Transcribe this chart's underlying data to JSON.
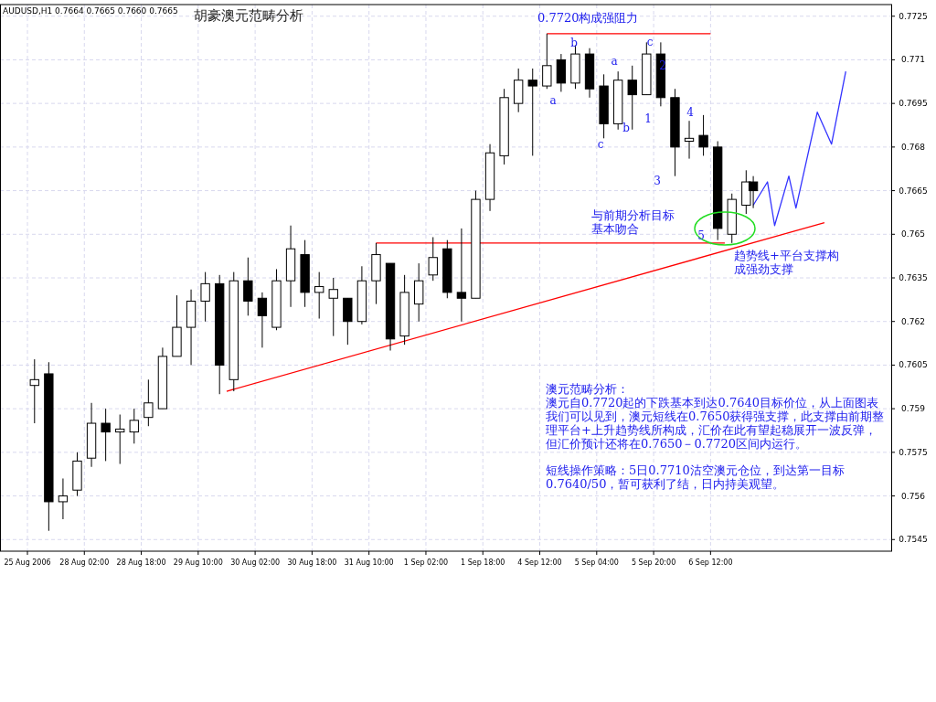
{
  "chart_data": {
    "type": "candlestick",
    "title": "AUDUSD,H1  0.7664 0.7665 0.7660 0.7665",
    "subtitle": "胡豪澳元范畴分析",
    "categories": [
      "25 Aug 2006",
      null,
      null,
      null,
      null,
      null,
      null,
      null,
      "28 Aug 02:00",
      null,
      null,
      null,
      null,
      null,
      null,
      null,
      "28 Aug 18:00",
      null,
      null,
      null,
      null,
      null,
      null,
      null,
      "29 Aug 10:00",
      null,
      null,
      null,
      null,
      null,
      null,
      null,
      "30 Aug 02:00",
      null,
      null,
      null,
      null,
      null,
      null,
      null,
      "30 Aug 18:00",
      null,
      null,
      null,
      null,
      null,
      null,
      null,
      "31 Aug 10:00",
      null,
      null,
      null,
      null,
      null,
      null,
      null,
      "1 Sep 02:00",
      null,
      null,
      null,
      null,
      null,
      null,
      null,
      "1 Sep 18:00",
      null,
      null,
      null,
      null,
      null,
      null,
      null,
      "4 Sep 12:00",
      null,
      null,
      null,
      null,
      null,
      null,
      null,
      "5 Sep 04:00",
      null,
      null,
      null,
      null,
      null,
      null,
      null,
      "5 Sep 20:00",
      null,
      null,
      null,
      null,
      null,
      null,
      null,
      "6 Sep 12:00",
      null,
      null,
      null,
      null,
      null,
      null,
      null,
      null,
      null,
      null,
      null,
      null,
      null,
      null,
      null,
      null,
      null,
      null,
      null,
      null,
      null,
      null,
      null,
      null,
      null
    ],
    "ohlc": [
      null,
      [
        0.7598,
        0.7607,
        0.7585,
        0.76
      ],
      null,
      [
        0.7602,
        0.7606,
        0.7548,
        0.7558
      ],
      null,
      [
        0.7558,
        0.7566,
        0.7552,
        0.756
      ],
      null,
      [
        0.7562,
        0.7575,
        0.756,
        0.7572
      ],
      null,
      [
        0.7573,
        0.7592,
        0.757,
        0.7585
      ],
      null,
      [
        0.7585,
        0.759,
        0.7572,
        0.7582
      ],
      null,
      [
        0.7582,
        0.7588,
        0.7571,
        0.7583
      ],
      null,
      [
        0.7582,
        0.759,
        0.7578,
        0.7586
      ],
      null,
      [
        0.7587,
        0.76,
        0.7584,
        0.7592
      ],
      null,
      [
        0.759,
        0.7611,
        0.759,
        0.7608
      ],
      null,
      [
        0.7608,
        0.7629,
        0.7608,
        0.7618
      ],
      null,
      [
        0.7618,
        0.7631,
        0.7605,
        0.7627
      ],
      null,
      [
        0.7627,
        0.7637,
        0.762,
        0.7633
      ],
      null,
      [
        0.7633,
        0.7636,
        0.7595,
        0.7605
      ],
      null,
      [
        0.76,
        0.7637,
        0.7596,
        0.7634
      ],
      null,
      [
        0.7634,
        0.7642,
        0.7622,
        0.7627
      ],
      null,
      [
        0.7628,
        0.763,
        0.7611,
        0.7622
      ],
      null,
      [
        0.7618,
        0.7638,
        0.7617,
        0.7634
      ],
      null,
      [
        0.7634,
        0.7653,
        0.7625,
        0.7645
      ],
      null,
      [
        0.7643,
        0.7648,
        0.7625,
        0.763
      ],
      null,
      [
        0.763,
        0.7637,
        0.7621,
        0.7632
      ],
      null,
      [
        0.7628,
        0.7635,
        0.7615,
        0.7631
      ],
      null,
      [
        0.7628,
        0.7628,
        0.7612,
        0.762
      ],
      null,
      [
        0.762,
        0.7639,
        0.7619,
        0.7634
      ],
      null,
      [
        0.7634,
        0.7647,
        0.7626,
        0.7643
      ],
      null,
      [
        0.764,
        0.764,
        0.761,
        0.7614
      ],
      null,
      [
        0.7615,
        0.7636,
        0.7612,
        0.763
      ],
      null,
      [
        0.7626,
        0.764,
        0.762,
        0.7634
      ],
      null,
      [
        0.7636,
        0.7649,
        0.7634,
        0.7642
      ],
      null,
      [
        0.7645,
        0.7648,
        0.7628,
        0.763
      ],
      null,
      [
        0.763,
        0.7652,
        0.762,
        0.7628
      ],
      null,
      [
        0.7628,
        0.7665,
        0.7628,
        0.7662
      ],
      null,
      [
        0.7662,
        0.7681,
        0.7658,
        0.7678
      ],
      null,
      [
        0.7677,
        0.77,
        0.7674,
        0.7697
      ],
      null,
      [
        0.7695,
        0.7707,
        0.7692,
        0.7703
      ],
      null,
      [
        0.7703,
        0.7707,
        0.7677,
        0.7701
      ],
      null,
      [
        0.7701,
        0.7719,
        0.77,
        0.7708
      ],
      null,
      [
        0.771,
        0.7712,
        0.7699,
        0.7702
      ],
      null,
      [
        0.7702,
        0.7715,
        0.77,
        0.7712
      ],
      null,
      [
        0.7712,
        0.7714,
        0.7697,
        0.77
      ],
      null,
      [
        0.7701,
        0.7705,
        0.7683,
        0.7688
      ],
      null,
      [
        0.7688,
        0.7706,
        0.7686,
        0.7703
      ],
      null,
      [
        0.7703,
        0.7708,
        0.7686,
        0.7698
      ],
      null,
      [
        0.7698,
        0.7716,
        0.7698,
        0.7712
      ],
      null,
      [
        0.7712,
        0.7716,
        0.7694,
        0.7697
      ],
      null,
      [
        0.7697,
        0.77,
        0.767,
        0.768
      ],
      null,
      [
        0.7682,
        0.7689,
        0.7676,
        0.7683
      ],
      null,
      [
        0.7684,
        0.7691,
        0.7677,
        0.768
      ],
      null,
      [
        0.768,
        0.7682,
        0.7648,
        0.7652
      ],
      null,
      [
        0.765,
        0.7664,
        0.7647,
        0.7662
      ],
      null,
      [
        0.766,
        0.7672,
        0.7657,
        0.7668
      ],
      [
        0.7668,
        0.767,
        0.7659,
        0.7665
      ],
      null,
      null,
      null,
      null,
      null,
      null,
      null,
      null,
      null,
      null,
      null,
      null,
      null,
      null,
      null,
      null,
      null,
      null,
      null
    ],
    "series": [
      {
        "type": "line",
        "color": "#ff0000",
        "values": [
          null,
          null,
          null,
          null,
          null,
          null,
          null,
          null,
          null,
          null,
          null,
          null,
          null,
          null,
          null,
          null,
          null,
          null,
          null,
          null,
          null,
          null,
          null,
          null,
          null,
          null,
          null,
          null,
          0.7596,
          null,
          null,
          null,
          null,
          null,
          null,
          null,
          null,
          null,
          null,
          null,
          null,
          null,
          null,
          null,
          null,
          null,
          null,
          null,
          null,
          null,
          null,
          null,
          null,
          null,
          null,
          null,
          null,
          null,
          null,
          null,
          null,
          null,
          null,
          null,
          null,
          null,
          null,
          null,
          null,
          null,
          null,
          null,
          null,
          null,
          null,
          null,
          null,
          null,
          null,
          null,
          null,
          null,
          null,
          null,
          null,
          null,
          null,
          null,
          null,
          null,
          null,
          null,
          null,
          null,
          null,
          null,
          null,
          null,
          null,
          null,
          null,
          null,
          null,
          null,
          null,
          null,
          null,
          null,
          null,
          null,
          null,
          null,
          0.7654,
          null,
          null,
          null,
          null,
          null,
          null,
          null,
          null,
          null
        ]
      },
      {
        "type": "line",
        "color": "#ff0000",
        "values": [
          null,
          null,
          null,
          null,
          null,
          null,
          null,
          null,
          null,
          null,
          null,
          null,
          null,
          null,
          null,
          null,
          null,
          null,
          null,
          null,
          null,
          null,
          null,
          null,
          null,
          null,
          null,
          null,
          null,
          null,
          null,
          null,
          null,
          null,
          null,
          null,
          null,
          null,
          null,
          null,
          null,
          null,
          null,
          null,
          null,
          null,
          null,
          null,
          null,
          0.7647,
          null,
          null,
          null,
          null,
          null,
          null,
          null,
          null,
          null,
          null,
          null,
          null,
          null,
          null,
          null,
          null,
          null,
          null,
          null,
          null,
          null,
          null,
          null,
          null,
          null,
          null,
          null,
          null,
          null,
          null,
          null,
          null,
          null,
          null,
          null,
          null,
          null,
          null,
          null,
          null,
          null,
          null,
          null,
          null,
          null,
          null,
          null,
          null,
          0.7647,
          null,
          null,
          null,
          null,
          null,
          null,
          null,
          null,
          null,
          null,
          null,
          null,
          null,
          null,
          null,
          null,
          null,
          null,
          null,
          null,
          null,
          null,
          null
        ]
      },
      {
        "type": "line",
        "color": "#ff0000",
        "values": [
          null,
          null,
          null,
          null,
          null,
          null,
          null,
          null,
          null,
          null,
          null,
          null,
          null,
          null,
          null,
          null,
          null,
          null,
          null,
          null,
          null,
          null,
          null,
          null,
          null,
          null,
          null,
          null,
          null,
          null,
          null,
          null,
          null,
          null,
          null,
          null,
          null,
          null,
          null,
          null,
          null,
          null,
          null,
          null,
          null,
          null,
          null,
          null,
          null,
          null,
          null,
          null,
          null,
          null,
          null,
          null,
          null,
          null,
          null,
          null,
          null,
          null,
          null,
          null,
          null,
          null,
          null,
          null,
          null,
          null,
          null,
          null,
          null,
          0.7719,
          null,
          null,
          null,
          null,
          null,
          null,
          null,
          null,
          null,
          null,
          null,
          null,
          null,
          null,
          null,
          null,
          null,
          null,
          null,
          null,
          null,
          null,
          0.7719,
          null,
          null,
          null,
          null,
          null,
          null,
          null,
          null,
          null,
          null,
          null,
          null,
          null,
          null,
          null,
          null,
          null,
          null,
          null,
          null,
          null,
          null,
          null,
          null,
          null
        ]
      },
      {
        "type": "line",
        "color": "#3333ff",
        "values": [
          null,
          null,
          null,
          null,
          null,
          null,
          null,
          null,
          null,
          null,
          null,
          null,
          null,
          null,
          null,
          null,
          null,
          null,
          null,
          null,
          null,
          null,
          null,
          null,
          null,
          null,
          null,
          null,
          null,
          null,
          null,
          null,
          null,
          null,
          null,
          null,
          null,
          null,
          null,
          null,
          null,
          null,
          null,
          null,
          null,
          null,
          null,
          null,
          null,
          null,
          null,
          null,
          null,
          null,
          null,
          null,
          null,
          null,
          null,
          null,
          null,
          null,
          null,
          null,
          null,
          null,
          null,
          null,
          null,
          null,
          null,
          null,
          null,
          null,
          null,
          null,
          null,
          null,
          null,
          null,
          null,
          null,
          null,
          null,
          null,
          null,
          null,
          null,
          null,
          null,
          null,
          null,
          null,
          null,
          null,
          null,
          null,
          null,
          null,
          null,
          null,
          null,
          0.766,
          null,
          0.7668,
          0.7653,
          null,
          0.767,
          0.7659,
          null,
          null,
          0.7692,
          null,
          0.7681,
          null,
          0.7706,
          null,
          null,
          null,
          null,
          null,
          null
        ]
      }
    ],
    "ylim": [
      0.7541,
      0.7729
    ],
    "yticks": [
      0.7545,
      0.756,
      0.7575,
      0.759,
      0.7605,
      0.762,
      0.7635,
      0.765,
      0.7665,
      0.768,
      0.7695,
      0.771,
      0.7725
    ],
    "grid": true,
    "annotations": [
      "0.7720构成强阻力",
      "a",
      "b",
      "c",
      "a",
      "b",
      "c",
      "1",
      "2",
      "3",
      "4",
      "5",
      "与前期分析目标基本吻合",
      "趋势线+平台支撑构成强劲支撑",
      "澳元范畴分析：",
      "澳元自0.7720起的下跌基本到达0.7640目标价位，从上面图表我们可以见到，澳元短线在0.7650获得强支撑，此支撑由前期整理平台+上升趋势线所构成，汇价在此有望起稳展开一波反弹，但汇价预计还将在0.7650－0.7720区间内运行。",
      "短线操作策略：5日0.7710沽空澳元仓位，到达第一目标0.7640/50，暂可获利了结，日内持美观望。"
    ]
  }
}
